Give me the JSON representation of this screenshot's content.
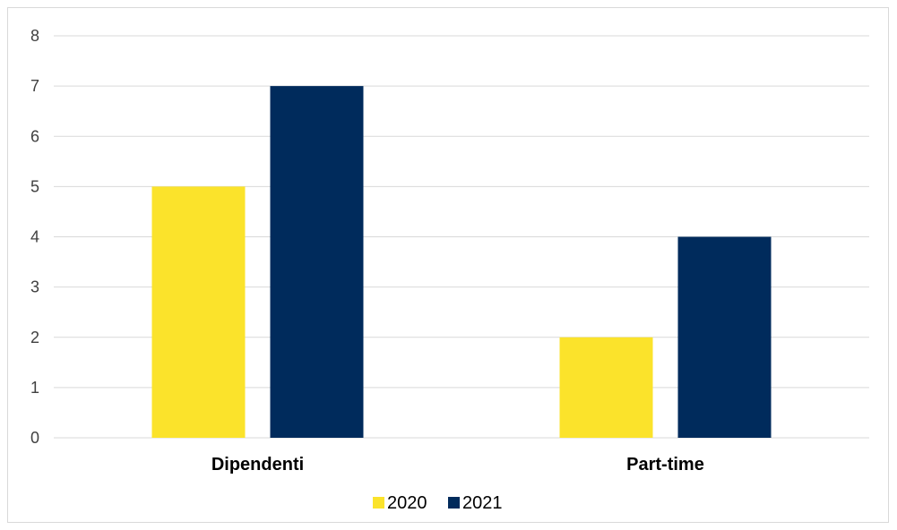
{
  "chart_data": {
    "type": "bar",
    "categories": [
      "Dipendenti",
      "Part-time"
    ],
    "series": [
      {
        "name": "2020",
        "values": [
          5,
          2
        ],
        "color": "#fbe32b"
      },
      {
        "name": "2021",
        "values": [
          7,
          4
        ],
        "color": "#002b5c"
      }
    ],
    "title": "",
    "xlabel": "",
    "ylabel": "",
    "ylim": [
      0,
      8
    ],
    "yticks": [
      0,
      1,
      2,
      3,
      4,
      5,
      6,
      7,
      8
    ],
    "grid": true,
    "legend_position": "bottom",
    "gridline_color": "#d9d9d9"
  }
}
